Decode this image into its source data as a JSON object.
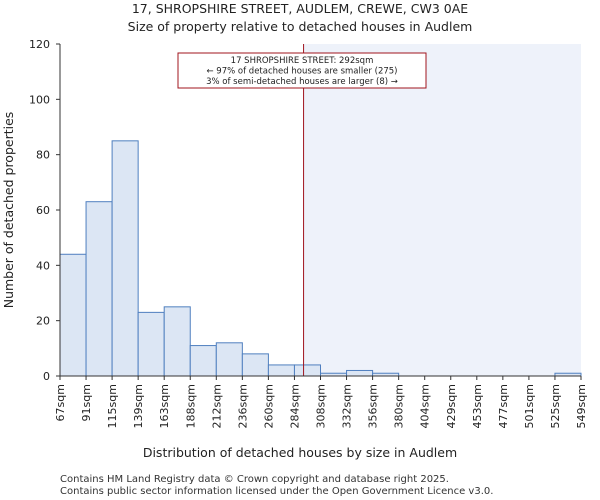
{
  "chart_data": {
    "type": "histogram",
    "title": "17, SHROPSHIRE STREET, AUDLEM, CREWE, CW3 0AE",
    "subtitle": "Size of property relative to detached houses in Audlem",
    "xlabel": "Distribution of detached houses by size in Audlem",
    "ylabel": "Number of detached properties",
    "ylim": [
      0,
      120
    ],
    "yticks": [
      0,
      20,
      40,
      60,
      80,
      100,
      120
    ],
    "categories": [
      "67sqm",
      "91sqm",
      "115sqm",
      "139sqm",
      "163sqm",
      "188sqm",
      "212sqm",
      "236sqm",
      "260sqm",
      "284sqm",
      "308sqm",
      "332sqm",
      "356sqm",
      "380sqm",
      "404sqm",
      "429sqm",
      "453sqm",
      "477sqm",
      "501sqm",
      "525sqm",
      "549sqm"
    ],
    "values": [
      44,
      63,
      85,
      23,
      25,
      11,
      12,
      8,
      4,
      4,
      1,
      2,
      1,
      0,
      0,
      0,
      0,
      0,
      0,
      1
    ],
    "marker": {
      "value_sqm": 292,
      "bin_position": 9.35,
      "annotation": [
        "17 SHROPSHIRE STREET: 292sqm",
        "← 97% of detached houses are smaller (275)",
        "3% of semi-detached houses are larger (8) →"
      ]
    },
    "colors": {
      "bar_fill": "#dce6f4",
      "bar_stroke": "#4f7fbf",
      "marker_line": "#a0141e",
      "shade": "#eef2fa"
    }
  },
  "footer": {
    "line1": "Contains HM Land Registry data © Crown copyright and database right 2025.",
    "line2": "Contains public sector information licensed under the Open Government Licence v3.0."
  }
}
